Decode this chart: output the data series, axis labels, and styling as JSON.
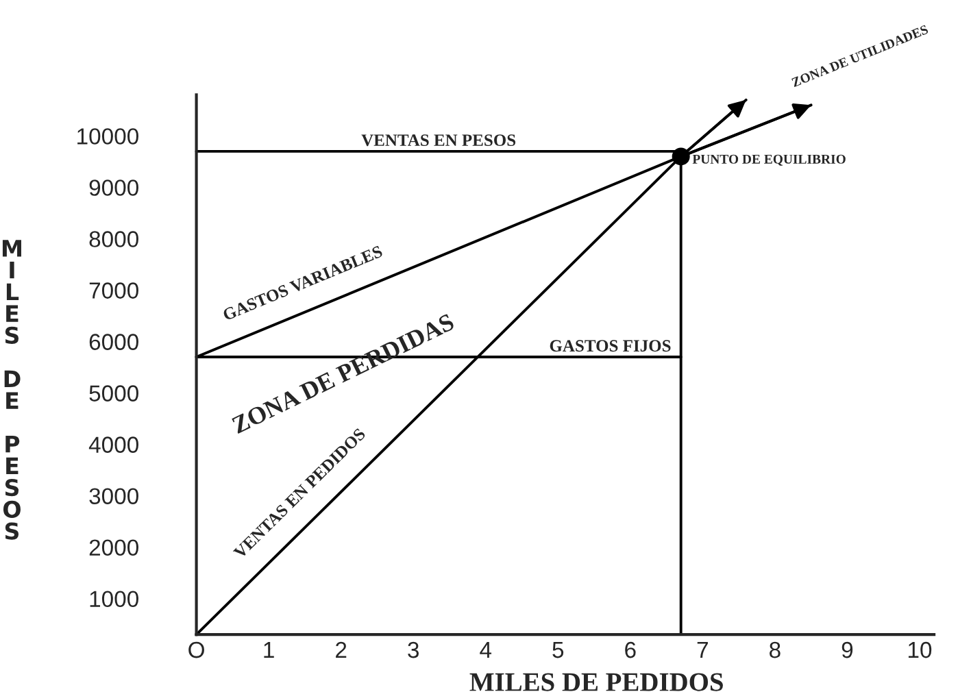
{
  "chart_data": {
    "type": "line",
    "xlabel": "MILES DE PEDIDOS",
    "ylabel": "MILES DE PESOS",
    "xlim": [
      0,
      10.2
    ],
    "ylim": [
      300,
      10800
    ],
    "xticks": [
      {
        "value": 0,
        "label": "O"
      },
      1,
      2,
      3,
      4,
      5,
      6,
      7,
      8,
      9,
      10
    ],
    "yticks": [
      1000,
      2000,
      3000,
      4000,
      5000,
      6000,
      7000,
      8000,
      9000,
      10000
    ],
    "grid": false,
    "legend": false,
    "series": [
      {
        "name": "VENTAS EN PESOS",
        "color": "#000000",
        "x": [
          0,
          6.7
        ],
        "values": [
          9700,
          9700
        ]
      },
      {
        "name": "GASTOS VARIABLES",
        "color": "#000000",
        "x": [
          0,
          6.7,
          8.5
        ],
        "values": [
          5700,
          9600,
          10600
        ]
      },
      {
        "name": "GASTOS FIJOS",
        "color": "#000000",
        "x": [
          0,
          6.7
        ],
        "values": [
          5700,
          5700
        ]
      },
      {
        "name": "VENTAS EN PEDIDOS",
        "color": "#000000",
        "x": [
          0,
          6.7,
          7.6
        ],
        "values": [
          300,
          9600,
          10700
        ]
      },
      {
        "color": "#000000",
        "x": [
          6.7,
          6.7
        ],
        "values": [
          300,
          9600
        ]
      },
      {
        "name": "PUNTO DE EQUILIBRIO",
        "type": "scatter",
        "color": "#000000",
        "x": [
          6.7
        ],
        "values": [
          9600
        ]
      }
    ],
    "annotations": [
      "ZONA DE PERDIDAS",
      "ZONA DE UTILIDADES"
    ]
  }
}
